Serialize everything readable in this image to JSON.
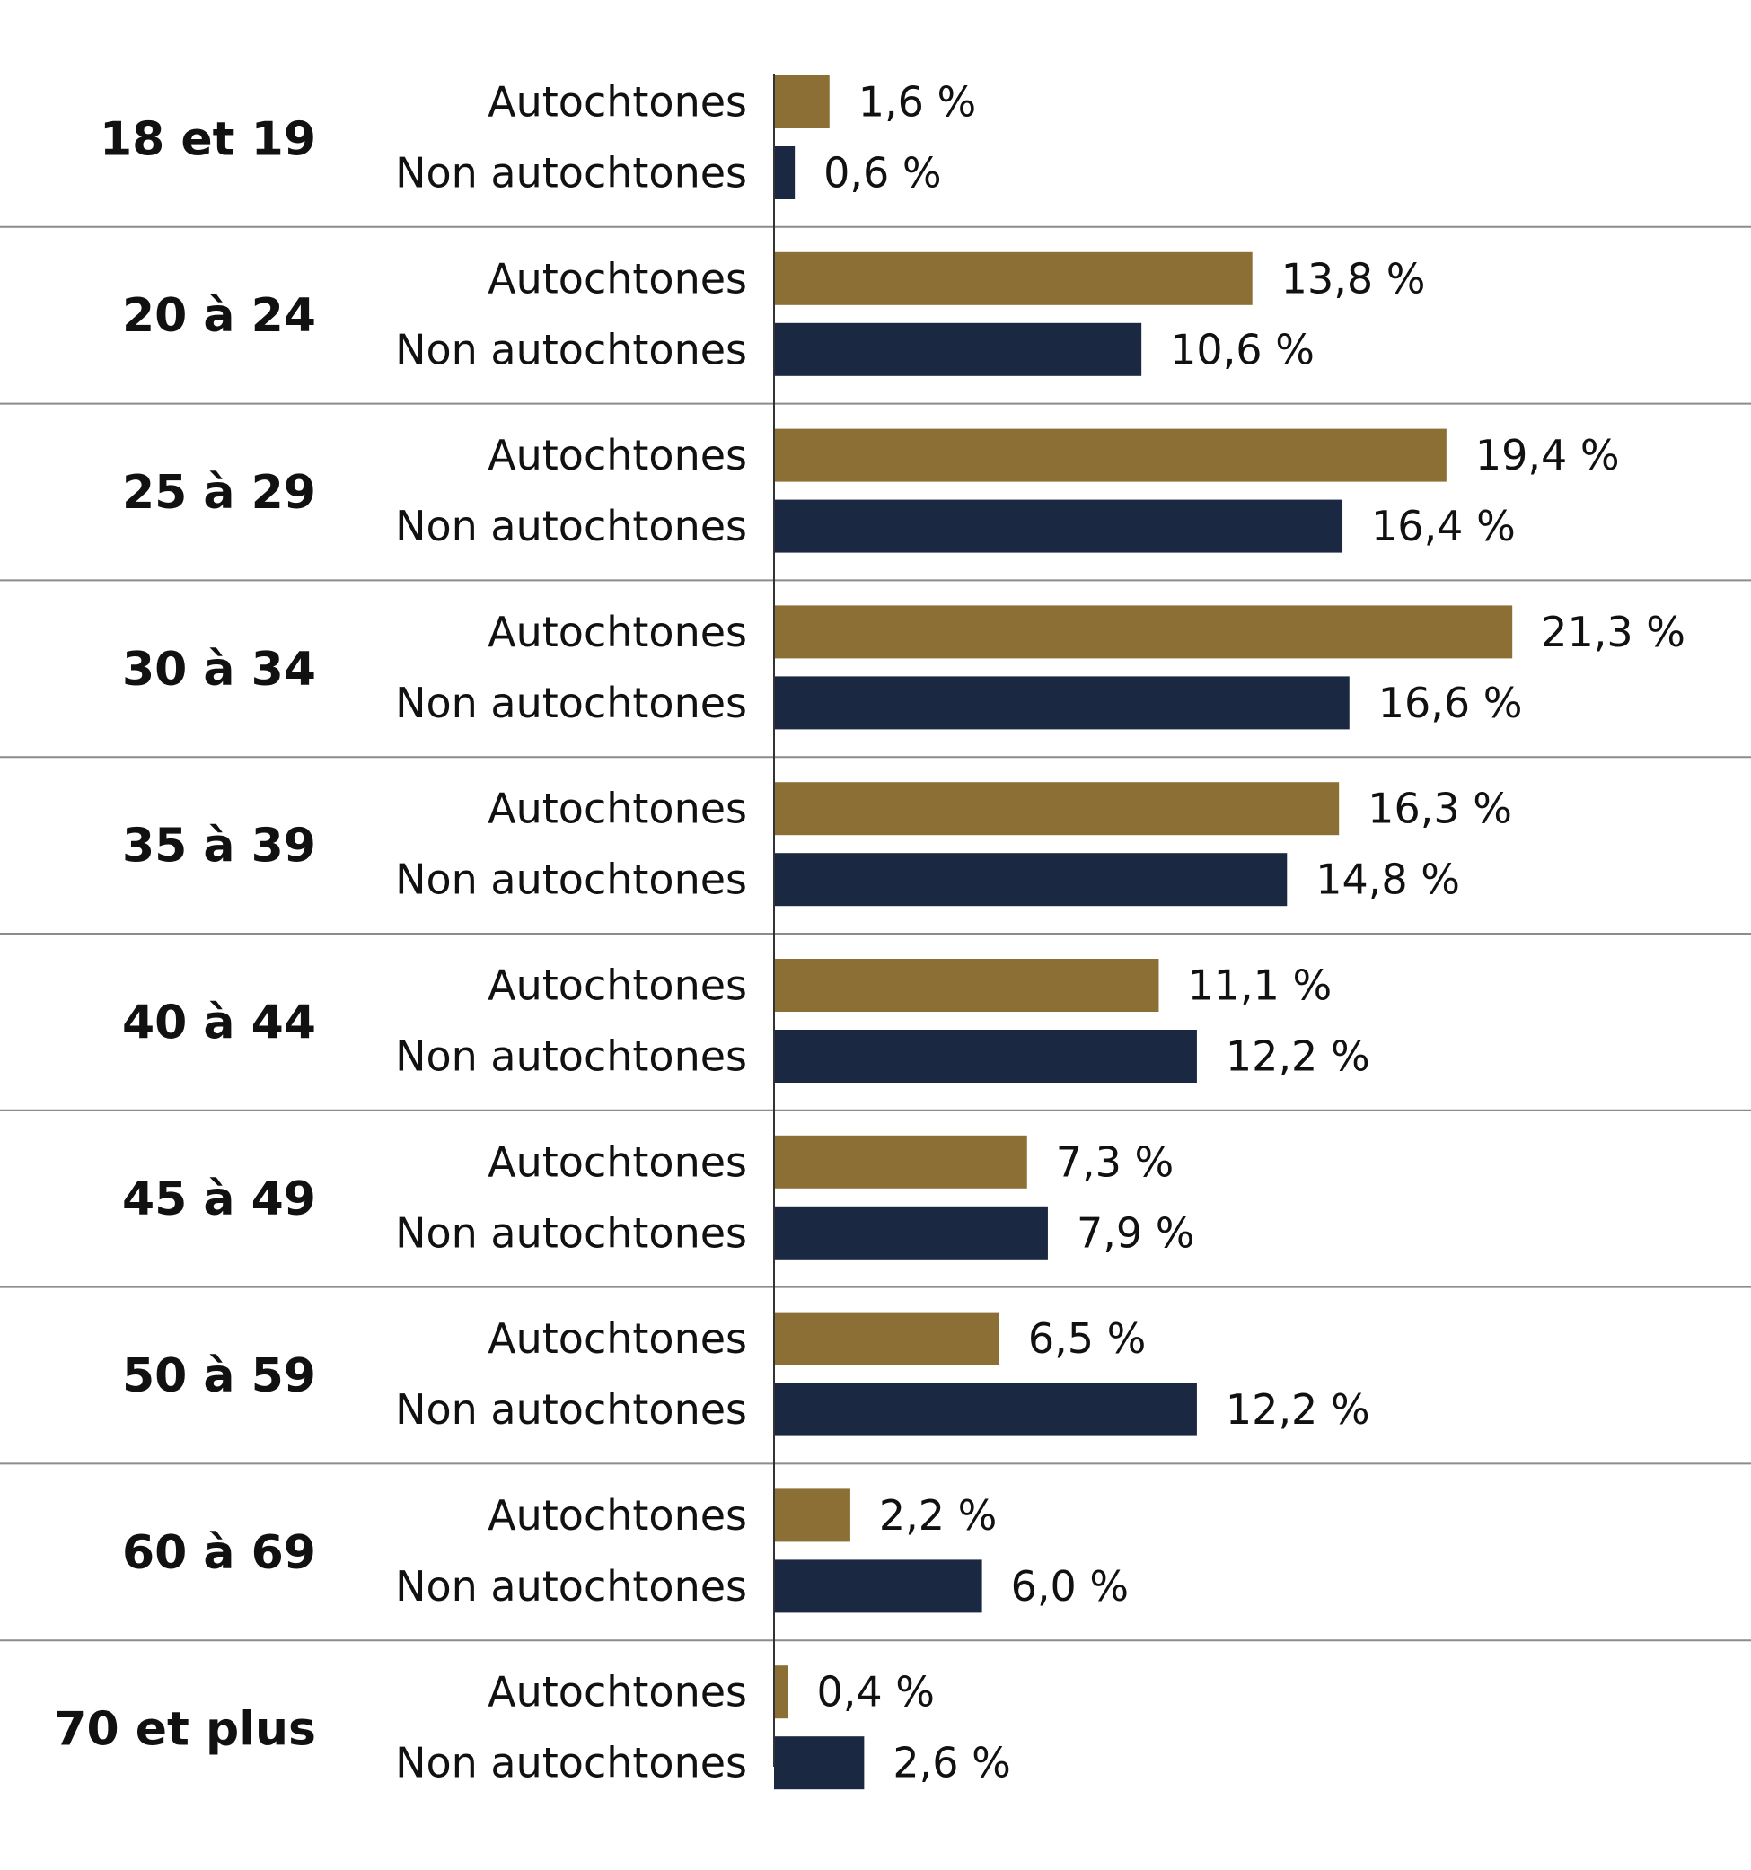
{
  "chart_data": {
    "type": "bar",
    "orientation": "horizontal",
    "categories": [
      "18 et 19",
      "20 à 24",
      "25 à 29",
      "30 à 34",
      "35 à 39",
      "40 à 44",
      "45 à 49",
      "50 à 59",
      "60 à 69",
      "70 et plus"
    ],
    "series": [
      {
        "name": "Autochtones",
        "color": "#8b6f35",
        "values": [
          1.6,
          13.8,
          19.4,
          21.3,
          16.3,
          11.1,
          7.3,
          6.5,
          2.2,
          0.4
        ],
        "labels": [
          "1,6 %",
          "13,8 %",
          "19,4 %",
          "21,3 %",
          "16,3 %",
          "11,1 %",
          "7,3 %",
          "6,5 %",
          "2,2 %",
          "0,4 %"
        ]
      },
      {
        "name": "Non autochtones",
        "color": "#1b2841",
        "values": [
          0.6,
          10.6,
          16.4,
          16.6,
          14.8,
          12.2,
          7.9,
          12.2,
          6.0,
          2.6
        ],
        "labels": [
          "0,6 %",
          "10,6 %",
          "16,4 %",
          "16,6 %",
          "14,8 %",
          "12,2 %",
          "7,9 %",
          "12,2 %",
          "6,0 %",
          "2,6 %"
        ]
      }
    ],
    "xlim": [
      0,
      25
    ],
    "grid": false,
    "title": "",
    "xlabel": "",
    "ylabel": ""
  }
}
